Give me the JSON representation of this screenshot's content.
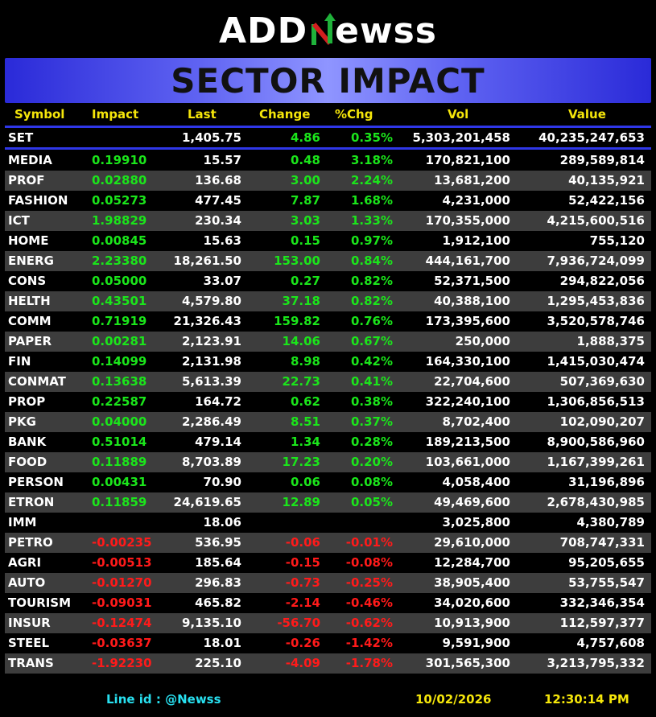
{
  "logo": {
    "part1": "ADD",
    "part2": "Newss"
  },
  "title": "SECTOR IMPACT",
  "columns": [
    "Symbol",
    "Impact",
    "Last",
    "Change",
    "%Chg",
    "Vol",
    "Value"
  ],
  "index_row": {
    "symbol": "SET",
    "impact": "",
    "last": "1,405.75",
    "change": "4.86",
    "pct": "0.35%",
    "vol": "5,303,201,458",
    "value": "40,235,247,653"
  },
  "rows": [
    {
      "symbol": "MEDIA",
      "impact": "0.19910",
      "last": "15.57",
      "change": "0.48",
      "pct": "3.18%",
      "vol": "170,821,100",
      "value": "289,589,814",
      "dir": "pos"
    },
    {
      "symbol": "PROF",
      "impact": "0.02880",
      "last": "136.68",
      "change": "3.00",
      "pct": "2.24%",
      "vol": "13,681,200",
      "value": "40,135,921",
      "dir": "pos"
    },
    {
      "symbol": "FASHION",
      "impact": "0.05273",
      "last": "477.45",
      "change": "7.87",
      "pct": "1.68%",
      "vol": "4,231,000",
      "value": "52,422,156",
      "dir": "pos"
    },
    {
      "symbol": "ICT",
      "impact": "1.98829",
      "last": "230.34",
      "change": "3.03",
      "pct": "1.33%",
      "vol": "170,355,000",
      "value": "4,215,600,516",
      "dir": "pos"
    },
    {
      "symbol": "HOME",
      "impact": "0.00845",
      "last": "15.63",
      "change": "0.15",
      "pct": "0.97%",
      "vol": "1,912,100",
      "value": "755,120",
      "dir": "pos"
    },
    {
      "symbol": "ENERG",
      "impact": "2.23380",
      "last": "18,261.50",
      "change": "153.00",
      "pct": "0.84%",
      "vol": "444,161,700",
      "value": "7,936,724,099",
      "dir": "pos"
    },
    {
      "symbol": "CONS",
      "impact": "0.05000",
      "last": "33.07",
      "change": "0.27",
      "pct": "0.82%",
      "vol": "52,371,500",
      "value": "294,822,056",
      "dir": "pos"
    },
    {
      "symbol": "HELTH",
      "impact": "0.43501",
      "last": "4,579.80",
      "change": "37.18",
      "pct": "0.82%",
      "vol": "40,388,100",
      "value": "1,295,453,836",
      "dir": "pos"
    },
    {
      "symbol": "COMM",
      "impact": "0.71919",
      "last": "21,326.43",
      "change": "159.82",
      "pct": "0.76%",
      "vol": "173,395,600",
      "value": "3,520,578,746",
      "dir": "pos"
    },
    {
      "symbol": "PAPER",
      "impact": "0.00281",
      "last": "2,123.91",
      "change": "14.06",
      "pct": "0.67%",
      "vol": "250,000",
      "value": "1,888,375",
      "dir": "pos"
    },
    {
      "symbol": "FIN",
      "impact": "0.14099",
      "last": "2,131.98",
      "change": "8.98",
      "pct": "0.42%",
      "vol": "164,330,100",
      "value": "1,415,030,474",
      "dir": "pos"
    },
    {
      "symbol": "CONMAT",
      "impact": "0.13638",
      "last": "5,613.39",
      "change": "22.73",
      "pct": "0.41%",
      "vol": "22,704,600",
      "value": "507,369,630",
      "dir": "pos"
    },
    {
      "symbol": "PROP",
      "impact": "0.22587",
      "last": "164.72",
      "change": "0.62",
      "pct": "0.38%",
      "vol": "322,240,100",
      "value": "1,306,856,513",
      "dir": "pos"
    },
    {
      "symbol": "PKG",
      "impact": "0.04000",
      "last": "2,286.49",
      "change": "8.51",
      "pct": "0.37%",
      "vol": "8,702,400",
      "value": "102,090,207",
      "dir": "pos"
    },
    {
      "symbol": "BANK",
      "impact": "0.51014",
      "last": "479.14",
      "change": "1.34",
      "pct": "0.28%",
      "vol": "189,213,500",
      "value": "8,900,586,960",
      "dir": "pos"
    },
    {
      "symbol": "FOOD",
      "impact": "0.11889",
      "last": "8,703.89",
      "change": "17.23",
      "pct": "0.20%",
      "vol": "103,661,000",
      "value": "1,167,399,261",
      "dir": "pos"
    },
    {
      "symbol": "PERSON",
      "impact": "0.00431",
      "last": "70.90",
      "change": "0.06",
      "pct": "0.08%",
      "vol": "4,058,400",
      "value": "31,196,896",
      "dir": "pos"
    },
    {
      "symbol": "ETRON",
      "impact": "0.11859",
      "last": "24,619.65",
      "change": "12.89",
      "pct": "0.05%",
      "vol": "49,469,600",
      "value": "2,678,430,985",
      "dir": "pos"
    },
    {
      "symbol": "IMM",
      "impact": "",
      "last": "18.06",
      "change": "",
      "pct": "",
      "vol": "3,025,800",
      "value": "4,380,789",
      "dir": "none"
    },
    {
      "symbol": "PETRO",
      "impact": "-0.00235",
      "last": "536.95",
      "change": "-0.06",
      "pct": "-0.01%",
      "vol": "29,610,000",
      "value": "708,747,331",
      "dir": "neg"
    },
    {
      "symbol": "AGRI",
      "impact": "-0.00513",
      "last": "185.64",
      "change": "-0.15",
      "pct": "-0.08%",
      "vol": "12,284,700",
      "value": "95,205,655",
      "dir": "neg"
    },
    {
      "symbol": "AUTO",
      "impact": "-0.01270",
      "last": "296.83",
      "change": "-0.73",
      "pct": "-0.25%",
      "vol": "38,905,400",
      "value": "53,755,547",
      "dir": "neg"
    },
    {
      "symbol": "TOURISM",
      "impact": "-0.09031",
      "last": "465.82",
      "change": "-2.14",
      "pct": "-0.46%",
      "vol": "34,020,600",
      "value": "332,346,354",
      "dir": "neg"
    },
    {
      "symbol": "INSUR",
      "impact": "-0.12474",
      "last": "9,135.10",
      "change": "-56.70",
      "pct": "-0.62%",
      "vol": "10,913,900",
      "value": "112,597,377",
      "dir": "neg"
    },
    {
      "symbol": "STEEL",
      "impact": "-0.03637",
      "last": "18.01",
      "change": "-0.26",
      "pct": "-1.42%",
      "vol": "9,591,900",
      "value": "4,757,608",
      "dir": "neg"
    },
    {
      "symbol": "TRANS",
      "impact": "-1.92230",
      "last": "225.10",
      "change": "-4.09",
      "pct": "-1.78%",
      "vol": "301,565,300",
      "value": "3,213,795,332",
      "dir": "neg"
    }
  ],
  "footer": {
    "line_id": "Line id  : @Newss",
    "date": "10/02/2026",
    "time": "12:30:14 PM"
  },
  "colors": {
    "positive": "#1be51b",
    "negative": "#ff1a1a",
    "header": "#f5e60a",
    "banner": "#5f63f2",
    "line_id": "#28e0f0",
    "logo_accent_green": "#1fb23a",
    "logo_accent_red": "#d21f1f"
  }
}
